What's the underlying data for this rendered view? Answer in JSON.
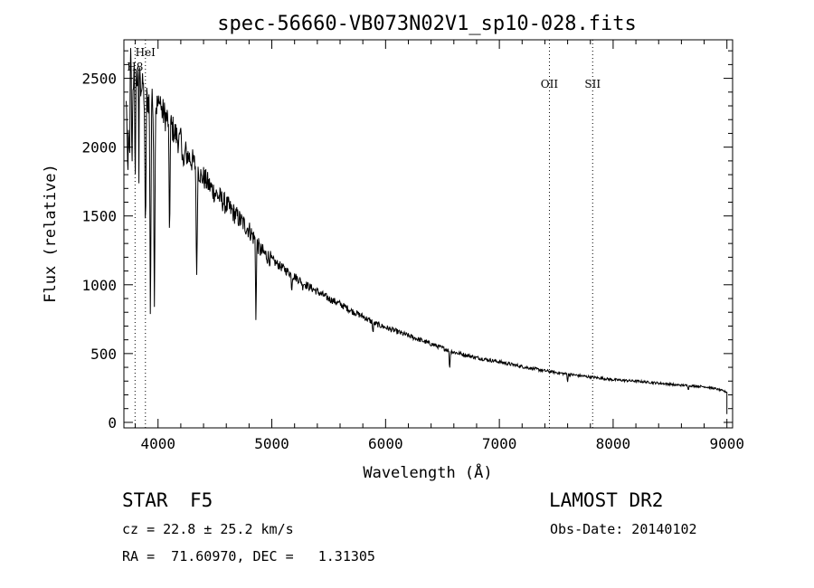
{
  "chart_data": {
    "type": "line",
    "title": "spec-56660-VB073N02V1_sp10-028.fits",
    "xlabel": "Wavelength (Å)",
    "ylabel": "Flux (relative)",
    "xlim": [
      3700,
      9050
    ],
    "ylim": [
      -40,
      2780
    ],
    "x_ticks": [
      4000,
      5000,
      6000,
      7000,
      8000,
      9000
    ],
    "y_ticks": [
      0,
      500,
      1000,
      1500,
      2000,
      2500
    ],
    "grid": false,
    "spectral_lines": [
      {
        "label": "HeI",
        "wavelength": 3889
      },
      {
        "label": "H8",
        "wavelength": 3798
      },
      {
        "label": "OII",
        "wavelength": 7440
      },
      {
        "label": "SII",
        "wavelength": 7820
      }
    ],
    "continuum": [
      [
        3720,
        2300
      ],
      [
        3760,
        2450
      ],
      [
        3800,
        2520
      ],
      [
        3850,
        2450
      ],
      [
        3900,
        2350
      ],
      [
        3950,
        2320
      ],
      [
        4000,
        2300
      ],
      [
        4050,
        2240
      ],
      [
        4100,
        2180
      ],
      [
        4150,
        2100
      ],
      [
        4200,
        2020
      ],
      [
        4250,
        1950
      ],
      [
        4300,
        1900
      ],
      [
        4350,
        1840
      ],
      [
        4400,
        1780
      ],
      [
        4450,
        1720
      ],
      [
        4500,
        1670
      ],
      [
        4600,
        1580
      ],
      [
        4700,
        1490
      ],
      [
        4800,
        1400
      ],
      [
        4850,
        1330
      ],
      [
        4900,
        1250
      ],
      [
        5000,
        1180
      ],
      [
        5100,
        1120
      ],
      [
        5200,
        1060
      ],
      [
        5300,
        1000
      ],
      [
        5400,
        950
      ],
      [
        5500,
        900
      ],
      [
        5600,
        860
      ],
      [
        5700,
        810
      ],
      [
        5800,
        770
      ],
      [
        5900,
        720
      ],
      [
        6000,
        690
      ],
      [
        6200,
        630
      ],
      [
        6400,
        570
      ],
      [
        6600,
        510
      ],
      [
        6800,
        470
      ],
      [
        7000,
        440
      ],
      [
        7200,
        405
      ],
      [
        7400,
        375
      ],
      [
        7600,
        350
      ],
      [
        7800,
        330
      ],
      [
        8000,
        310
      ],
      [
        8200,
        300
      ],
      [
        8400,
        285
      ],
      [
        8600,
        270
      ],
      [
        8800,
        260
      ],
      [
        8900,
        245
      ],
      [
        9000,
        220
      ]
    ],
    "absorption_features": [
      [
        3734,
        1650
      ],
      [
        3750,
        1780
      ],
      [
        3770,
        1850
      ],
      [
        3798,
        1750
      ],
      [
        3835,
        1450
      ],
      [
        3889,
        1300
      ],
      [
        3933,
        680
      ],
      [
        3968,
        800
      ],
      [
        4101,
        1330
      ],
      [
        4226,
        1800
      ],
      [
        4340,
        1000
      ],
      [
        4383,
        1750
      ],
      [
        4861,
        720
      ],
      [
        5175,
        960
      ],
      [
        5270,
        980
      ],
      [
        5890,
        640
      ],
      [
        6563,
        380
      ],
      [
        7600,
        300
      ],
      [
        8542,
        260
      ],
      [
        8662,
        240
      ]
    ],
    "emission_spikes": [
      [
        3760,
        2720
      ],
      [
        3790,
        2600
      ],
      [
        3840,
        2580
      ],
      [
        3870,
        2480
      ],
      [
        4020,
        2370
      ],
      [
        4200,
        2140
      ]
    ]
  },
  "info": {
    "object_type": "STAR",
    "subclass": "F5",
    "survey": "LAMOST DR2",
    "redshift": "cz = 22.8 ± 25.2 km/s",
    "obs_date": "Obs-Date: 20140102",
    "coords": "RA =  71.60970, DEC =   1.31305"
  }
}
